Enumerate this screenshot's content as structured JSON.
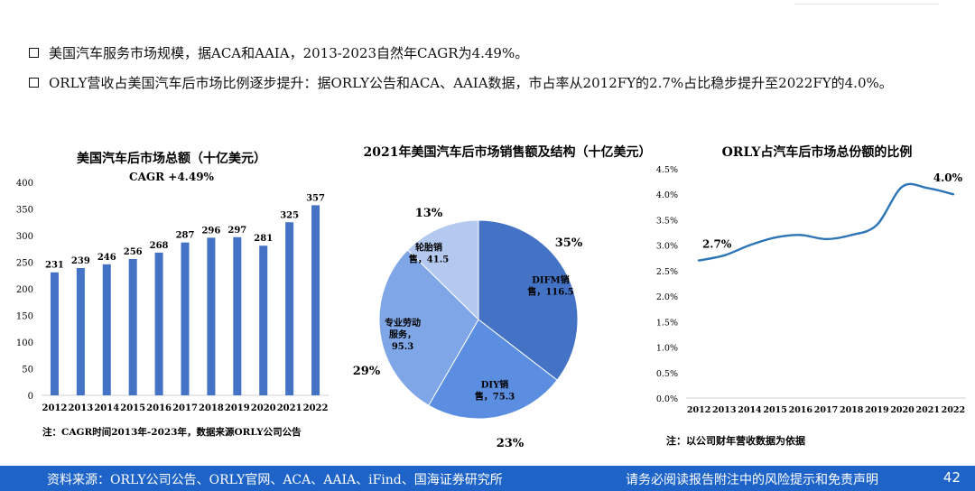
{
  "bullets": [
    "美国汽车服务市场规模，据ACA和AAIA，2013-2023自然年CAGR为4.49%。",
    "ORLY营收占美国汽车后市场比例逐步提升：据ORLY公告和ACA、AAIA数据，市占率从2012FY的2.7%占比稳步提升至2022FY的4.0%。"
  ],
  "footer": {
    "source": "资料来源：ORLY公司公告、ORLY官网、ACA、AAIA、iFind、国海证券研究所",
    "disclaimer": "请务必阅读报告附注中的风险提示和免责声明",
    "page": "42"
  },
  "colors": {
    "bar": "#4472c4",
    "line": "#2e75b6",
    "footer": "#1e64c8"
  },
  "chart_data": [
    {
      "type": "bar",
      "title": "美国汽车后市场总额（十亿美元）",
      "subtitle": "CAGR +4.49%",
      "categories": [
        "2012",
        "2013",
        "2014",
        "2015",
        "2016",
        "2017",
        "2018",
        "2019",
        "2020",
        "2021",
        "2022"
      ],
      "values": [
        231,
        239,
        246,
        256,
        268,
        287,
        296,
        297,
        281,
        325,
        357
      ],
      "ylim": [
        0,
        400
      ],
      "yticks": [
        0,
        50,
        100,
        150,
        200,
        250,
        300,
        350,
        400
      ],
      "note": "注：CAGR时间2013年-2023年，数据来源ORLY公司公告"
    },
    {
      "type": "pie",
      "title": "2021年美国汽车后市场销售额及结构（十亿美元）",
      "slices": [
        {
          "label_lines": [
            "DIFM销",
            "售，116.5"
          ],
          "value": 116.5,
          "percent": "35%",
          "color": "#4472c4"
        },
        {
          "label_lines": [
            "DIY销",
            "售，75.3"
          ],
          "value": 75.3,
          "percent": "23%",
          "color": "#5b8ee0"
        },
        {
          "label_lines": [
            "专业劳动",
            "服务，",
            "95.3"
          ],
          "value": 95.3,
          "percent": "29%",
          "color": "#7fa6e6"
        },
        {
          "label_lines": [
            "轮胎销",
            "售，41.5"
          ],
          "value": 41.5,
          "percent": "13%",
          "color": "#b4c9ef"
        }
      ]
    },
    {
      "type": "line",
      "title": "ORLY占汽车后市场总份额的比例",
      "categories": [
        "2012",
        "2013",
        "2014",
        "2015",
        "2016",
        "2017",
        "2018",
        "2019",
        "2020",
        "2021",
        "2022"
      ],
      "values": [
        2.7,
        2.8,
        3.0,
        3.15,
        3.2,
        3.12,
        3.2,
        3.4,
        4.15,
        4.12,
        4.0
      ],
      "ylim": [
        0,
        4.5
      ],
      "yticks": [
        "0.0%",
        "0.5%",
        "1.0%",
        "1.5%",
        "2.0%",
        "2.5%",
        "3.0%",
        "3.5%",
        "4.0%",
        "4.5%"
      ],
      "annotations": [
        {
          "index": 0,
          "text": "2.7%"
        },
        {
          "index": 10,
          "text": "4.0%"
        }
      ],
      "note": "注：以公司财年营收数据为依据"
    }
  ]
}
